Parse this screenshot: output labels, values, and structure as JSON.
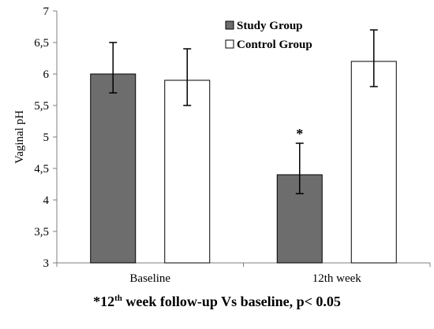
{
  "chart_data": {
    "type": "bar",
    "title": "",
    "xlabel": "",
    "ylabel": "Vaginal  pH",
    "ylim": [
      3,
      7
    ],
    "yticks": [
      "3",
      "3,5",
      "4",
      "4,5",
      "5",
      "5,5",
      "6",
      "6,5",
      "7"
    ],
    "ytick_values": [
      3,
      3.5,
      4,
      4.5,
      5,
      5.5,
      6,
      6.5,
      7
    ],
    "categories": [
      "Baseline",
      "12th week"
    ],
    "series": [
      {
        "name": "Study Group",
        "color": "#6d6d6d",
        "values": [
          6.0,
          4.4
        ],
        "error_low": [
          5.7,
          4.1
        ],
        "error_high": [
          6.5,
          4.9
        ]
      },
      {
        "name": "Control Group",
        "color": "#ffffff",
        "values": [
          5.9,
          6.2
        ],
        "error_low": [
          5.5,
          5.8
        ],
        "error_high": [
          6.4,
          6.7
        ]
      }
    ],
    "legend_position": "top-right",
    "grid": false,
    "annotations": [
      {
        "text": "*",
        "category": "12th week",
        "series": "Study Group"
      }
    ]
  },
  "footnote": {
    "prefix": "*12",
    "sup": "th",
    "suffix": " week follow-up  Vs baseline, p< 0.05"
  }
}
